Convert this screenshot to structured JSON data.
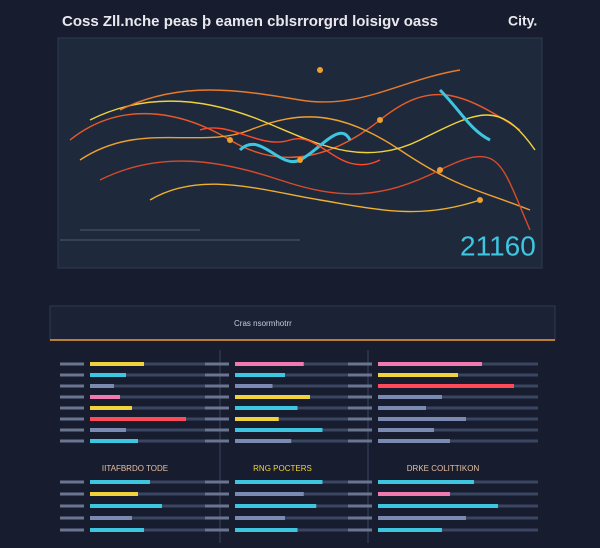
{
  "header": {
    "title": "Coss Zll.nche peas þ eamen cblsrrorgrd loisigv oass",
    "city": "City."
  },
  "map": {
    "figure": "21160"
  },
  "strip": {
    "label": "Cras nsormhotrr"
  },
  "panels": [
    {
      "bars": [
        {
          "value": 45,
          "color": "#f0d23c"
        },
        {
          "value": 30,
          "color": "#3ec6e0"
        },
        {
          "value": 20,
          "color": "#7b8ab0"
        },
        {
          "value": 25,
          "color": "#f07ab0"
        },
        {
          "value": 35,
          "color": "#f0d23c"
        },
        {
          "value": 80,
          "color": "#ff4a5a"
        },
        {
          "value": 30,
          "color": "#7b8ab0"
        },
        {
          "value": 40,
          "color": "#3ec6e0"
        }
      ]
    },
    {
      "bars": [
        {
          "value": 55,
          "color": "#f07ab0"
        },
        {
          "value": 40,
          "color": "#3ec6e0"
        },
        {
          "value": 30,
          "color": "#7b8ab0"
        },
        {
          "value": 60,
          "color": "#f0d23c"
        },
        {
          "value": 50,
          "color": "#3ec6e0"
        },
        {
          "value": 35,
          "color": "#f0d23c"
        },
        {
          "value": 70,
          "color": "#3ec6e0"
        },
        {
          "value": 45,
          "color": "#7b8ab0"
        }
      ]
    },
    {
      "bars": [
        {
          "value": 65,
          "color": "#f07ab0"
        },
        {
          "value": 50,
          "color": "#f0d23c"
        },
        {
          "value": 85,
          "color": "#ff4a5a"
        },
        {
          "value": 40,
          "color": "#7b8ab0"
        },
        {
          "value": 30,
          "color": "#7b8ab0"
        },
        {
          "value": 55,
          "color": "#7b8ab0"
        },
        {
          "value": 35,
          "color": "#7b8ab0"
        },
        {
          "value": 45,
          "color": "#7b8ab0"
        }
      ]
    }
  ],
  "sections": [
    {
      "title": "IITAFBRDO TODE",
      "bars": [
        {
          "value": 50,
          "color": "#3ec6e0"
        },
        {
          "value": 40,
          "color": "#f0d23c"
        },
        {
          "value": 60,
          "color": "#3ec6e0"
        },
        {
          "value": 35,
          "color": "#7b8ab0"
        },
        {
          "value": 45,
          "color": "#3ec6e0"
        }
      ]
    },
    {
      "title": "RNG POCTERS",
      "bars": [
        {
          "value": 70,
          "color": "#3ec6e0"
        },
        {
          "value": 55,
          "color": "#7b8ab0"
        },
        {
          "value": 65,
          "color": "#3ec6e0"
        },
        {
          "value": 40,
          "color": "#7b8ab0"
        },
        {
          "value": 50,
          "color": "#3ec6e0"
        }
      ]
    },
    {
      "title": "DRKE COLITTIKON",
      "bars": [
        {
          "value": 60,
          "color": "#3ec6e0"
        },
        {
          "value": 45,
          "color": "#f07ab0"
        },
        {
          "value": 75,
          "color": "#3ec6e0"
        },
        {
          "value": 55,
          "color": "#7b8ab0"
        },
        {
          "value": 40,
          "color": "#3ec6e0"
        }
      ]
    }
  ]
}
